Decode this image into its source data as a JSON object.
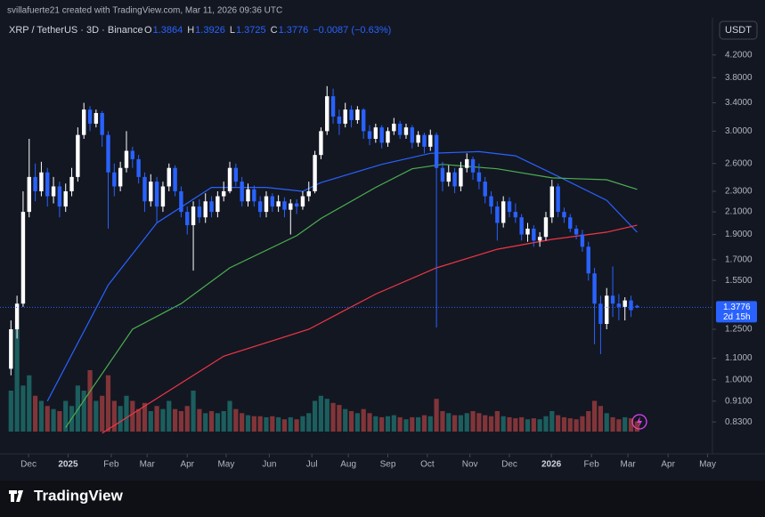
{
  "chart_data": {
    "type": "candlestick",
    "credit": "svillafuerte21 created with TradingView.com, Mar 11, 2026 09:36 UTC",
    "symbol": "XRP / TetherUS · 3D · Binance",
    "ohlc_labels": [
      "O",
      "H",
      "L",
      "C"
    ],
    "ohlc_values": [
      "1.3864",
      "1.3926",
      "1.3725",
      "1.3776"
    ],
    "change": "−0.0087 (−0.63%)",
    "currency": "USDT",
    "log_scale": true,
    "grid": false,
    "up_color": "#ffffff",
    "down_color": "#2962ff",
    "volume_up_color": "#26a69a",
    "volume_down_color": "#ef5350",
    "xlim": [
      -1.8,
      115.4
    ],
    "ylim": [
      0.78,
      4.95
    ],
    "yticks": [
      {
        "value": 4.2,
        "label": "4.2000"
      },
      {
        "value": 3.8,
        "label": "3.8000"
      },
      {
        "value": 3.4,
        "label": "3.4000"
      },
      {
        "value": 3.0,
        "label": "3.0000"
      },
      {
        "value": 2.6,
        "label": "2.6000"
      },
      {
        "value": 2.3,
        "label": "2.3000"
      },
      {
        "value": 2.1,
        "label": "2.1000"
      },
      {
        "value": 1.9,
        "label": "1.9000"
      },
      {
        "value": 1.7,
        "label": "1.7000"
      },
      {
        "value": 1.55,
        "label": "1.5500"
      },
      {
        "value": 1.25,
        "label": "1.2500"
      },
      {
        "value": 1.1,
        "label": "1.1000"
      },
      {
        "value": 1.0,
        "label": "1.0000"
      },
      {
        "value": 0.91,
        "label": "0.9100"
      },
      {
        "value": 0.83,
        "label": "0.8300"
      }
    ],
    "xticks": [
      {
        "value": 2.9,
        "label": "Dec"
      },
      {
        "value": 9.4,
        "label": "2025"
      },
      {
        "value": 16.5,
        "label": "Feb"
      },
      {
        "value": 22.4,
        "label": "Mar"
      },
      {
        "value": 29.0,
        "label": "Apr"
      },
      {
        "value": 35.4,
        "label": "May"
      },
      {
        "value": 42.5,
        "label": "Jun"
      },
      {
        "value": 49.5,
        "label": "Jul"
      },
      {
        "value": 55.5,
        "label": "Aug"
      },
      {
        "value": 62.0,
        "label": "Sep"
      },
      {
        "value": 68.5,
        "label": "Oct"
      },
      {
        "value": 75.5,
        "label": "Nov"
      },
      {
        "value": 82.0,
        "label": "Dec"
      },
      {
        "value": 88.9,
        "label": "2026"
      },
      {
        "value": 95.5,
        "label": "Feb"
      },
      {
        "value": 101.5,
        "label": "Mar"
      },
      {
        "value": 108.1,
        "label": "Apr"
      },
      {
        "value": 114.6,
        "label": "May"
      }
    ],
    "last_price": 1.3776,
    "countdown": "2d 15h",
    "ohlc": [
      [
        1.05,
        1.3,
        1.02,
        1.25
      ],
      [
        1.25,
        1.45,
        1.2,
        1.4
      ],
      [
        1.4,
        2.3,
        1.38,
        2.1
      ],
      [
        2.1,
        2.9,
        2.05,
        2.45
      ],
      [
        2.45,
        2.6,
        2.2,
        2.3
      ],
      [
        2.3,
        2.62,
        2.25,
        2.5
      ],
      [
        2.5,
        2.55,
        2.15,
        2.25
      ],
      [
        2.25,
        2.45,
        2.18,
        2.35
      ],
      [
        2.35,
        2.4,
        2.05,
        2.15
      ],
      [
        2.15,
        2.38,
        2.1,
        2.3
      ],
      [
        2.3,
        2.55,
        2.25,
        2.45
      ],
      [
        2.45,
        3.05,
        2.4,
        2.95
      ],
      [
        2.95,
        3.4,
        2.9,
        3.3
      ],
      [
        3.3,
        3.35,
        3.0,
        3.1
      ],
      [
        3.1,
        3.3,
        3.05,
        3.25
      ],
      [
        3.25,
        3.28,
        2.8,
        2.95
      ],
      [
        2.95,
        3.0,
        1.95,
        2.5
      ],
      [
        2.5,
        2.6,
        2.25,
        2.35
      ],
      [
        2.35,
        2.62,
        2.3,
        2.55
      ],
      [
        2.55,
        3.0,
        2.5,
        2.75
      ],
      [
        2.75,
        2.8,
        2.55,
        2.65
      ],
      [
        2.65,
        2.7,
        2.38,
        2.45
      ],
      [
        2.45,
        2.5,
        2.1,
        2.2
      ],
      [
        2.2,
        2.48,
        2.15,
        2.4
      ],
      [
        2.4,
        2.45,
        2.0,
        2.15
      ],
      [
        2.15,
        2.4,
        2.1,
        2.35
      ],
      [
        2.35,
        2.6,
        2.3,
        2.55
      ],
      [
        2.55,
        2.58,
        2.25,
        2.3
      ],
      [
        2.3,
        2.35,
        2.05,
        2.1
      ],
      [
        2.1,
        2.15,
        1.9,
        1.98
      ],
      [
        1.98,
        2.2,
        1.62,
        2.15
      ],
      [
        2.15,
        2.22,
        2.0,
        2.05
      ],
      [
        2.05,
        2.28,
        2.0,
        2.2
      ],
      [
        2.2,
        2.25,
        2.05,
        2.1
      ],
      [
        2.1,
        2.3,
        2.05,
        2.25
      ],
      [
        2.25,
        2.4,
        2.2,
        2.3
      ],
      [
        2.3,
        2.62,
        2.28,
        2.55
      ],
      [
        2.55,
        2.6,
        2.35,
        2.4
      ],
      [
        2.4,
        2.45,
        2.15,
        2.2
      ],
      [
        2.2,
        2.38,
        2.15,
        2.32
      ],
      [
        2.32,
        2.36,
        2.15,
        2.2
      ],
      [
        2.2,
        2.25,
        2.05,
        2.1
      ],
      [
        2.1,
        2.3,
        2.05,
        2.25
      ],
      [
        2.25,
        2.28,
        2.1,
        2.15
      ],
      [
        2.15,
        2.26,
        2.1,
        2.2
      ],
      [
        2.2,
        2.24,
        2.05,
        2.12
      ],
      [
        2.12,
        2.22,
        1.9,
        2.18
      ],
      [
        2.18,
        2.22,
        2.08,
        2.15
      ],
      [
        2.15,
        2.3,
        2.12,
        2.25
      ],
      [
        2.25,
        2.4,
        2.2,
        2.3
      ],
      [
        2.3,
        2.75,
        2.28,
        2.7
      ],
      [
        2.7,
        3.05,
        2.65,
        3.0
      ],
      [
        3.0,
        3.66,
        2.95,
        3.5
      ],
      [
        3.5,
        3.62,
        3.1,
        3.2
      ],
      [
        3.2,
        3.3,
        2.95,
        3.1
      ],
      [
        3.1,
        3.4,
        3.05,
        3.3
      ],
      [
        3.3,
        3.36,
        3.05,
        3.15
      ],
      [
        3.15,
        3.35,
        3.1,
        3.3
      ],
      [
        3.3,
        3.32,
        2.9,
        3.0
      ],
      [
        3.0,
        3.08,
        2.82,
        2.9
      ],
      [
        2.9,
        3.1,
        2.85,
        3.05
      ],
      [
        3.05,
        3.08,
        2.78,
        2.85
      ],
      [
        2.85,
        3.05,
        2.8,
        3.0
      ],
      [
        3.0,
        3.18,
        2.95,
        3.1
      ],
      [
        3.1,
        3.14,
        2.9,
        2.95
      ],
      [
        2.95,
        3.1,
        2.9,
        3.05
      ],
      [
        3.05,
        3.08,
        2.78,
        2.85
      ],
      [
        2.85,
        3.0,
        2.8,
        2.95
      ],
      [
        2.95,
        2.98,
        2.72,
        2.8
      ],
      [
        2.8,
        3.02,
        2.75,
        2.95
      ],
      [
        2.95,
        2.98,
        1.26,
        2.55
      ],
      [
        2.55,
        2.62,
        2.3,
        2.4
      ],
      [
        2.4,
        2.58,
        2.35,
        2.5
      ],
      [
        2.5,
        2.55,
        2.28,
        2.35
      ],
      [
        2.35,
        2.62,
        2.3,
        2.55
      ],
      [
        2.55,
        2.72,
        2.5,
        2.65
      ],
      [
        2.65,
        2.68,
        2.42,
        2.5
      ],
      [
        2.5,
        2.6,
        2.32,
        2.4
      ],
      [
        2.4,
        2.45,
        2.18,
        2.25
      ],
      [
        2.25,
        2.3,
        2.08,
        2.15
      ],
      [
        2.15,
        2.2,
        1.85,
        2.0
      ],
      [
        2.0,
        2.25,
        1.96,
        2.2
      ],
      [
        2.2,
        2.24,
        2.05,
        2.1
      ],
      [
        2.1,
        2.18,
        2.0,
        2.05
      ],
      [
        2.05,
        2.08,
        1.85,
        1.9
      ],
      [
        1.9,
        2.0,
        1.84,
        1.95
      ],
      [
        1.95,
        1.98,
        1.8,
        1.85
      ],
      [
        1.85,
        1.92,
        1.8,
        1.88
      ],
      [
        1.88,
        2.1,
        1.85,
        2.05
      ],
      [
        2.05,
        2.42,
        2.0,
        2.35
      ],
      [
        2.35,
        2.38,
        2.05,
        2.1
      ],
      [
        2.1,
        2.14,
        2.0,
        2.05
      ],
      [
        2.05,
        2.08,
        1.92,
        1.95
      ],
      [
        1.95,
        1.98,
        1.86,
        1.9
      ],
      [
        1.9,
        1.94,
        1.76,
        1.8
      ],
      [
        1.8,
        1.84,
        1.55,
        1.6
      ],
      [
        1.6,
        1.64,
        1.17,
        1.4
      ],
      [
        1.4,
        1.45,
        1.12,
        1.28
      ],
      [
        1.28,
        1.5,
        1.25,
        1.45
      ],
      [
        1.45,
        1.65,
        1.32,
        1.4
      ],
      [
        1.4,
        1.46,
        1.3,
        1.38
      ],
      [
        1.38,
        1.44,
        1.3,
        1.42
      ],
      [
        1.42,
        1.45,
        1.32,
        1.36
      ],
      [
        1.3864,
        1.3926,
        1.3725,
        1.3776
      ]
    ],
    "volume": [
      40,
      100,
      45,
      55,
      35,
      30,
      25,
      22,
      20,
      30,
      25,
      45,
      40,
      60,
      30,
      35,
      55,
      30,
      25,
      35,
      30,
      22,
      28,
      20,
      25,
      22,
      30,
      22,
      20,
      25,
      40,
      22,
      18,
      20,
      18,
      20,
      30,
      22,
      18,
      16,
      15,
      15,
      14,
      15,
      14,
      12,
      14,
      12,
      15,
      18,
      30,
      35,
      32,
      28,
      26,
      22,
      20,
      18,
      22,
      18,
      15,
      14,
      15,
      16,
      14,
      12,
      14,
      14,
      16,
      15,
      32,
      20,
      18,
      16,
      16,
      18,
      20,
      18,
      16,
      15,
      20,
      15,
      14,
      13,
      14,
      12,
      13,
      12,
      15,
      20,
      16,
      14,
      13,
      12,
      15,
      20,
      30,
      25,
      18,
      14,
      12,
      14,
      13,
      10
    ],
    "moving_averages": [
      {
        "color": "#2962ff",
        "x": [
          6,
          16,
          24,
          33,
          42,
          48,
          51,
          61,
          69,
          77,
          83,
          89,
          98,
          103
        ],
        "values": [
          0.91,
          1.52,
          2.0,
          2.34,
          2.34,
          2.3,
          2.39,
          2.59,
          2.72,
          2.74,
          2.69,
          2.49,
          2.21,
          1.92
        ]
      },
      {
        "color": "#4caf50",
        "x": [
          9,
          13,
          20,
          28,
          36,
          47,
          51,
          60,
          66,
          71,
          80,
          89,
          98,
          103
        ],
        "values": [
          0.81,
          0.95,
          1.25,
          1.4,
          1.64,
          1.89,
          2.04,
          2.34,
          2.54,
          2.59,
          2.54,
          2.44,
          2.42,
          2.32
        ]
      },
      {
        "color": "#f23645",
        "x": [
          15,
          22,
          35,
          49,
          60,
          70,
          80,
          89,
          98,
          103
        ],
        "values": [
          0.79,
          0.89,
          1.11,
          1.25,
          1.46,
          1.64,
          1.78,
          1.86,
          1.92,
          1.98
        ]
      }
    ]
  },
  "watermark": "TradingView"
}
